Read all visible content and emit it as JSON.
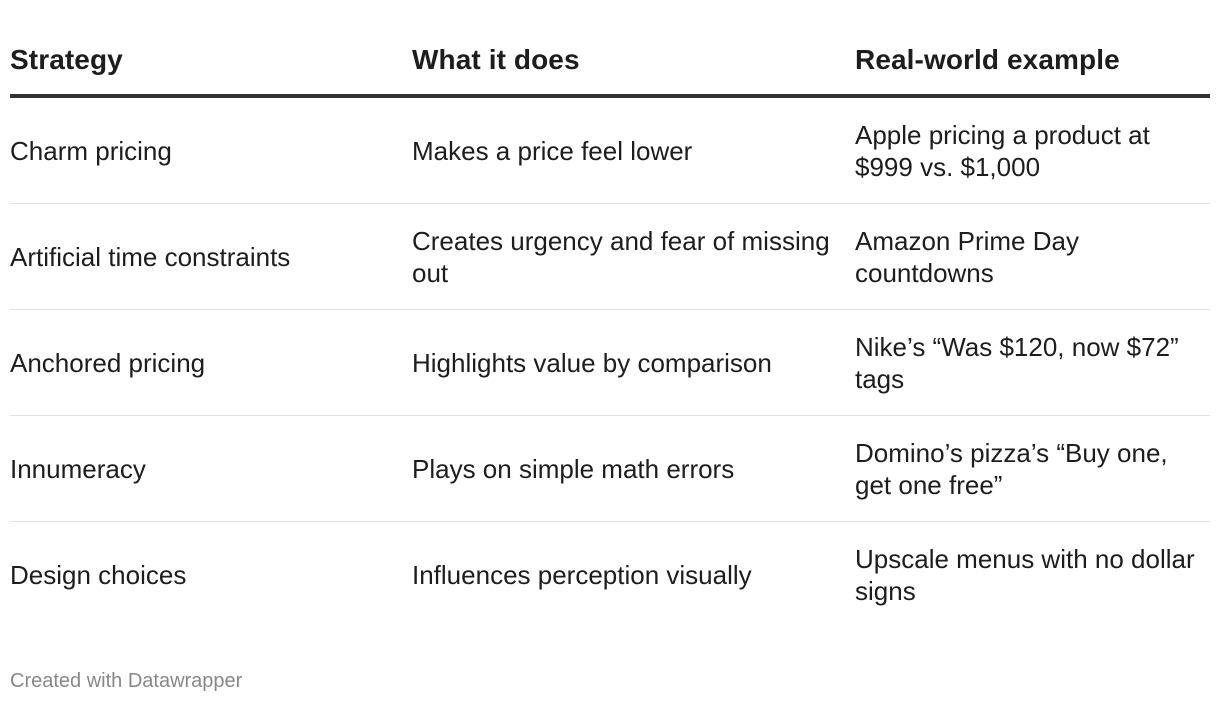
{
  "table": {
    "headers": [
      "Strategy",
      "What it does",
      "Real-world example"
    ],
    "rows": [
      [
        "Charm pricing",
        "Makes a price feel lower",
        "Apple pricing a product at $999 vs. $1,000"
      ],
      [
        "Artificial time constraints",
        "Creates urgency and fear of missing out",
        "Amazon Prime Day countdowns"
      ],
      [
        "Anchored pricing",
        "Highlights value by comparison",
        "Nike’s “Was $120, now $72” tags"
      ],
      [
        "Innumeracy",
        "Plays on simple math errors",
        "Domino’s pizza’s “Buy one, get one free”"
      ],
      [
        "Design choices",
        "Influences perception visually",
        "Upscale menus with no dollar signs"
      ]
    ]
  },
  "footer": {
    "credit": "Created with Datawrapper"
  }
}
